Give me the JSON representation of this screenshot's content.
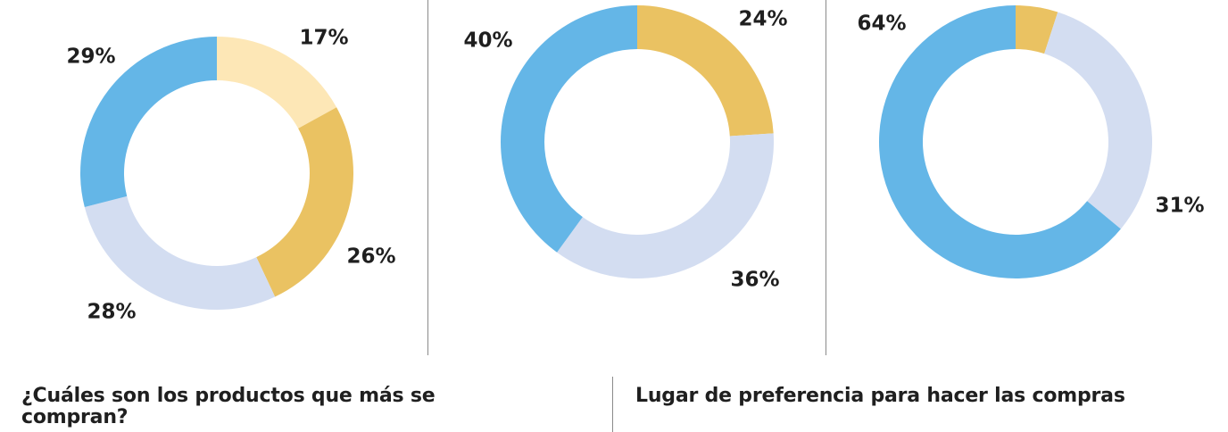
{
  "chart_data": [
    {
      "type": "pie",
      "donut": true,
      "labels": [
        "17%",
        "26%",
        "28%",
        "29%"
      ],
      "values": [
        17,
        26,
        28,
        29
      ],
      "colors": [
        "#fde7b6",
        "#eac262",
        "#d3ddf1",
        "#64b6e7"
      ]
    },
    {
      "type": "pie",
      "donut": true,
      "labels": [
        "24%",
        "36%",
        "40%"
      ],
      "values": [
        24,
        36,
        40
      ],
      "colors": [
        "#eac262",
        "#d3ddf1",
        "#64b6e7"
      ]
    },
    {
      "type": "pie",
      "donut": true,
      "labels": [
        "",
        "31%",
        "64%"
      ],
      "values": [
        5,
        31,
        64
      ],
      "colors": [
        "#eac262",
        "#d3ddf1",
        "#64b6e7"
      ]
    }
  ],
  "headings": {
    "products_question": "¿Cuáles son los productos que más se compran?",
    "purchase_place": "Lugar de preferencia para hacer las compras"
  }
}
